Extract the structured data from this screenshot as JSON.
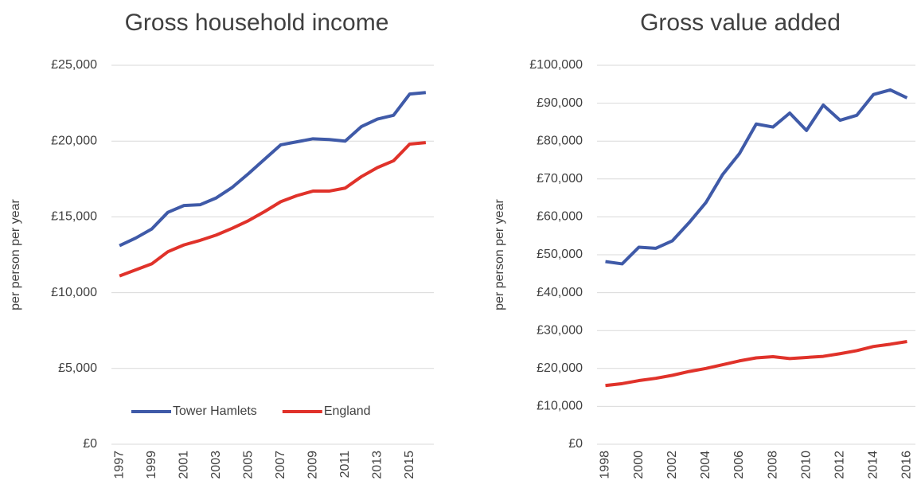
{
  "chart_data": [
    {
      "type": "line",
      "title": "Gross household income",
      "y_label": "per person per year",
      "categories": [
        "1997",
        null,
        "1999",
        null,
        "2001",
        null,
        "2003",
        null,
        "2005",
        null,
        "2007",
        null,
        "2009",
        null,
        "2011",
        null,
        "2013",
        null,
        "2015",
        null
      ],
      "series": [
        {
          "name": "Tower Hamlets",
          "color": "#3f5aa8",
          "values": [
            13100,
            13600,
            14200,
            15300,
            15750,
            15800,
            16250,
            16950,
            17850,
            18800,
            19750,
            19950,
            20150,
            20100,
            20000,
            20950,
            21450,
            21700,
            23100,
            23200
          ]
        },
        {
          "name": "England",
          "color": "#e0322a",
          "values": [
            11100,
            11500,
            11900,
            12700,
            13150,
            13450,
            13800,
            14250,
            14750,
            15350,
            16000,
            16400,
            16700,
            16700,
            16900,
            17650,
            18250,
            18700,
            19800,
            19900
          ]
        }
      ],
      "ylim": [
        0,
        25000
      ],
      "yticks": [
        {
          "value": 0,
          "label": "£0"
        },
        {
          "value": 5000,
          "label": "£5,000"
        },
        {
          "value": 10000,
          "label": "£10,000"
        },
        {
          "value": 15000,
          "label": "£15,000"
        },
        {
          "value": 20000,
          "label": "£20,000"
        },
        {
          "value": 25000,
          "label": "£25,000"
        }
      ],
      "grid": true,
      "legend": "bottom"
    },
    {
      "type": "line",
      "title": "Gross value added",
      "y_label": "per person per year",
      "categories": [
        "1998",
        null,
        "2000",
        null,
        "2002",
        null,
        "2004",
        null,
        "2006",
        null,
        "2008",
        null,
        "2010",
        null,
        "2012",
        null,
        "2014",
        null,
        "2016"
      ],
      "series": [
        {
          "color": "#3f5aa8",
          "values": [
            48200,
            47600,
            52000,
            51700,
            53700,
            58500,
            63800,
            71200,
            76700,
            84500,
            83700,
            87400,
            82800,
            89500,
            85500,
            86800,
            92300,
            93500,
            91400
          ]
        },
        {
          "color": "#e0322a",
          "values": [
            15500,
            16000,
            16800,
            17400,
            18200,
            19200,
            20000,
            21000,
            22000,
            22800,
            23100,
            22600,
            22900,
            23200,
            23900,
            24700,
            25800,
            26400,
            27100
          ]
        }
      ],
      "ylim": [
        0,
        100000
      ],
      "yticks": [
        {
          "value": 0,
          "label": "£0"
        },
        {
          "value": 10000,
          "label": "£10,000"
        },
        {
          "value": 20000,
          "label": "£20,000"
        },
        {
          "value": 30000,
          "label": "£30,000"
        },
        {
          "value": 40000,
          "label": "£40,000"
        },
        {
          "value": 50000,
          "label": "£50,000"
        },
        {
          "value": 60000,
          "label": "£60,000"
        },
        {
          "value": 70000,
          "label": "£70,000"
        },
        {
          "value": 80000,
          "label": "£80,000"
        },
        {
          "value": 90000,
          "label": "£90,000"
        },
        {
          "value": 100000,
          "label": "£100,000"
        }
      ],
      "grid": true
    }
  ]
}
